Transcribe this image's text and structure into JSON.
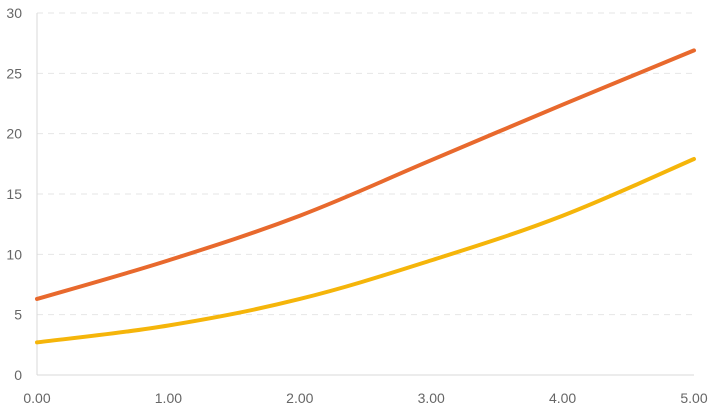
{
  "chart_data": {
    "type": "line",
    "x": [
      0,
      1,
      2,
      3,
      4,
      5
    ],
    "x_tick_labels": [
      "0.00",
      "1.00",
      "2.00",
      "3.00",
      "4.00",
      "5.00"
    ],
    "y_ticks": [
      0,
      5,
      10,
      15,
      20,
      25,
      30
    ],
    "y_tick_labels": [
      "0",
      "5",
      "10",
      "15",
      "20",
      "25",
      "30"
    ],
    "xlim": [
      0,
      5
    ],
    "ylim": [
      0,
      30
    ],
    "grid": "horizontal dashed",
    "legend": "none",
    "series": [
      {
        "values": [
          6.3,
          9.5,
          13.2,
          17.8,
          22.4,
          26.9
        ],
        "color": "#e8692d"
      },
      {
        "values": [
          2.7,
          4.1,
          6.3,
          9.5,
          13.2,
          17.9
        ],
        "color": "#f5b50a"
      }
    ]
  }
}
